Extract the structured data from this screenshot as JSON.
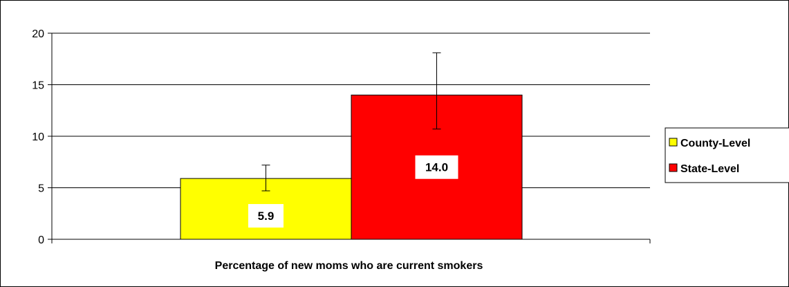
{
  "chart_data": {
    "type": "bar",
    "title": "",
    "xlabel": "Percentage of new moms who are current smokers",
    "ylabel": "",
    "ylim": [
      0,
      20
    ],
    "yticks": [
      0,
      5,
      10,
      15,
      20
    ],
    "grid": true,
    "legend_position": "right",
    "series": [
      {
        "name": "County-Level",
        "value": 5.9,
        "label": "5.9",
        "error_low": 4.7,
        "error_high": 7.2,
        "color": "#FFFF00"
      },
      {
        "name": "State-Level",
        "value": 14.0,
        "label": "14.0",
        "error_low": 10.7,
        "error_high": 18.1,
        "color": "#FF0000"
      }
    ]
  }
}
